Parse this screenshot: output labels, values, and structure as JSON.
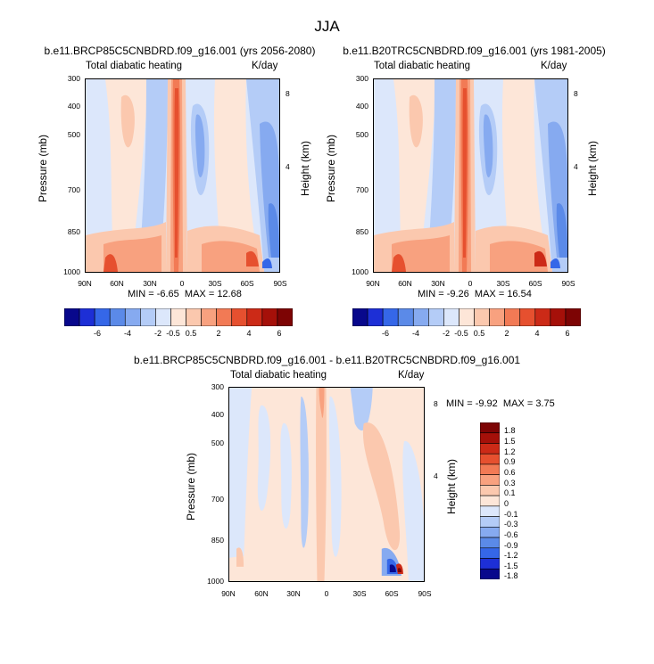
{
  "figure": {
    "suptitle": "JJA",
    "units": "K/day",
    "variable": "Total diabatic heating",
    "pressure_axis_label": "Pressure (mb)",
    "height_axis_label": "Height (km)"
  },
  "colors": {
    "diverging": [
      "#08088c",
      "#1d2fd6",
      "#3567e8",
      "#5b8ae8",
      "#86aaf0",
      "#b4ccf7",
      "#dce7fb",
      "#fde6d8",
      "#fbc8ae",
      "#f8a17f",
      "#f27a55",
      "#e6502f",
      "#cc2a17",
      "#a51009",
      "#7d0404"
    ]
  },
  "chart_data": [
    {
      "id": "rcp85",
      "type": "heatmap",
      "title": "b.e11.BRCP85C5CNBDRD.f09_g16.001 (yrs 2056-2080)",
      "left_subtitle": "Total diabatic heating",
      "right_subtitle": "K/day",
      "xlabel": "",
      "ylabel": "Pressure (mb)",
      "y2label": "Height (km)",
      "x_ticks": [
        "90N",
        "60N",
        "30N",
        "0",
        "30S",
        "60S",
        "90S"
      ],
      "y_ticks": [
        "300",
        "400",
        "500",
        "700",
        "850",
        "1000"
      ],
      "y_ticks_right": [
        "8",
        "4"
      ],
      "min_label": "MIN =",
      "min": "-6.65",
      "max_label": "MAX =",
      "max": "12.68",
      "label_bar": [
        "-6",
        "-4",
        "-2",
        "-0.5",
        "0.5",
        "2",
        "4",
        "6"
      ]
    },
    {
      "id": "b20trc",
      "type": "heatmap",
      "title": "b.e11.B20TRC5CNBDRD.f09_g16.001 (yrs 1981-2005)",
      "left_subtitle": "Total diabatic heating",
      "right_subtitle": "K/day",
      "xlabel": "",
      "ylabel": "Pressure (mb)",
      "y2label": "Height (km)",
      "x_ticks": [
        "90N",
        "60N",
        "30N",
        "0",
        "30S",
        "60S",
        "90S"
      ],
      "y_ticks": [
        "300",
        "400",
        "500",
        "700",
        "850",
        "1000"
      ],
      "y_ticks_right": [
        "8",
        "4"
      ],
      "min_label": "MIN =",
      "min": "-9.26",
      "max_label": "MAX =",
      "max": "16.54",
      "label_bar": [
        "-6",
        "-4",
        "-2",
        "-0.5",
        "0.5",
        "2",
        "4",
        "6"
      ]
    },
    {
      "id": "diff",
      "type": "heatmap",
      "title": "b.e11.BRCP85C5CNBDRD.f09_g16.001 - b.e11.B20TRC5CNBDRD.f09_g16.001",
      "left_subtitle": "Total diabatic heating",
      "right_subtitle": "K/day",
      "xlabel": "",
      "ylabel": "Pressure (mb)",
      "y2label": "Height (km)",
      "x_ticks": [
        "90N",
        "60N",
        "30N",
        "0",
        "30S",
        "60S",
        "90S"
      ],
      "y_ticks": [
        "300",
        "400",
        "500",
        "700",
        "850",
        "1000"
      ],
      "y_ticks_right": [
        "8",
        "4"
      ],
      "min_label": "MIN =",
      "min": "-9.92",
      "max_label": "MAX =",
      "max": "3.75",
      "label_bar": [
        "1.8",
        "1.5",
        "1.2",
        "0.9",
        "0.6",
        "0.3",
        "0.1",
        "0",
        "-0.1",
        "-0.3",
        "-0.6",
        "-0.9",
        "-1.2",
        "-1.5",
        "-1.8"
      ]
    }
  ]
}
